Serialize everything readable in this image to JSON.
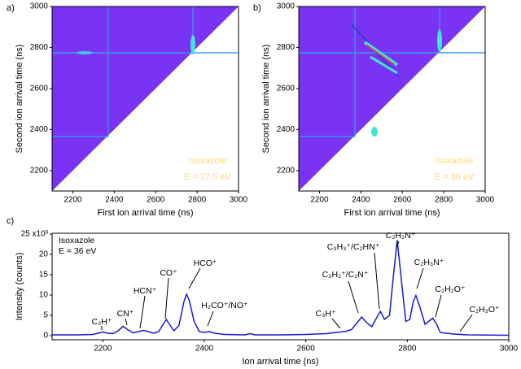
{
  "chart_data": [
    {
      "type": "heatmap",
      "panel": "a)",
      "x_label": "First ion arrival time (ns)",
      "y_label": "Second ion arrival time (ns)",
      "xlim": [
        2100,
        3000
      ],
      "xticks": [
        2200,
        2400,
        2600,
        2800,
        3000
      ],
      "ylim": [
        2100,
        3000
      ],
      "yticks": [
        2200,
        2400,
        2600,
        2800,
        3000
      ],
      "annotations": [
        "Isoxazole",
        "E = 27.5 eV"
      ]
    },
    {
      "type": "heatmap",
      "panel": "b)",
      "x_label": "First ion arrival time (ns)",
      "y_label": "Second ion arrival time (ns)",
      "xlim": [
        2100,
        3000
      ],
      "xticks": [
        2200,
        2400,
        2600,
        2800,
        3000
      ],
      "ylim": [
        2100,
        3000
      ],
      "yticks": [
        2200,
        2400,
        2600,
        2800,
        3000
      ],
      "annotations": [
        "Isoxazole",
        "E = 36 eV"
      ]
    },
    {
      "type": "line",
      "panel": "c)",
      "x_label": "Ion arrival time (ns)",
      "y_label": "Intensity (counts)",
      "xlim": [
        2100,
        3000
      ],
      "xticks": [
        2200,
        2400,
        2600,
        2800,
        3000
      ],
      "ylim": [
        -1,
        25.2
      ],
      "yticks": [
        0,
        5,
        10,
        15,
        20,
        {
          "value": 25,
          "label": "25 x10³"
        }
      ],
      "annotations": [
        "Isoxazole",
        "E = 36 eV",
        "C₂H⁺",
        "CN⁺",
        "HCN⁺",
        "CO⁺",
        "HCO⁺",
        "H₂CO⁺/NO⁺",
        "C₃H⁺",
        "C₃H₂⁺/C₂N⁺",
        "C₃H₃⁺/C₂HN⁺",
        "C₂H₂N⁺",
        "C₂H₃N⁺",
        "C₂H₂O⁺",
        "C₂H₃O⁺"
      ],
      "series": [
        {
          "color": "#1a1acc",
          "x": [
            2100,
            2150,
            2180,
            2190,
            2200,
            2210,
            2220,
            2230,
            2240,
            2250,
            2260,
            2270,
            2280,
            2290,
            2300,
            2310,
            2320,
            2325,
            2330,
            2340,
            2350,
            2360,
            2365,
            2370,
            2380,
            2390,
            2400,
            2410,
            2420,
            2440,
            2480,
            2490,
            2500,
            2550,
            2600,
            2640,
            2660,
            2680,
            2690,
            2700,
            2710,
            2720,
            2730,
            2740,
            2747,
            2755,
            2765,
            2772,
            2780,
            2788,
            2797,
            2805,
            2812,
            2817,
            2825,
            2835,
            2845,
            2850,
            2857,
            2865,
            2875,
            2880,
            2890,
            2920,
            3000
          ],
          "values": [
            0.2,
            0.2,
            0.3,
            0.6,
            0.9,
            0.6,
            0.5,
            1.2,
            2.3,
            1.4,
            0.7,
            1.0,
            1.3,
            1.0,
            0.6,
            1.0,
            3.0,
            4.0,
            3.0,
            1.2,
            2.5,
            8.5,
            10.2,
            8.8,
            3.5,
            1.0,
            0.8,
            1.0,
            0.6,
            0.3,
            0.2,
            0.5,
            0.2,
            0.2,
            0.3,
            0.5,
            0.8,
            1.1,
            1.5,
            3.0,
            4.6,
            3.2,
            2.2,
            4.5,
            6.0,
            4.0,
            5.0,
            14.0,
            23.5,
            14.0,
            3.5,
            4.0,
            8.5,
            9.9,
            7.0,
            2.8,
            3.8,
            4.3,
            3.0,
            0.8,
            0.6,
            0.6,
            0.4,
            0.2,
            0.1
          ]
        }
      ]
    }
  ]
}
